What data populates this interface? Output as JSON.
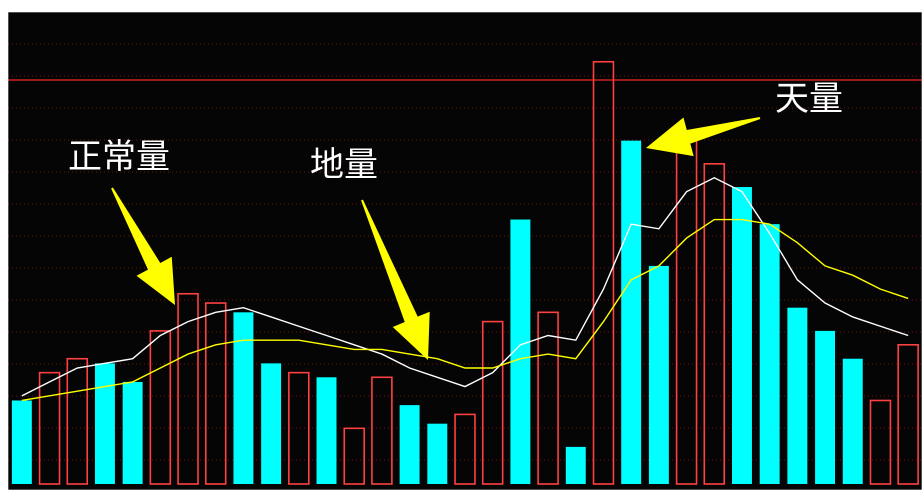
{
  "chart_data": {
    "type": "bar",
    "x": [
      1,
      2,
      3,
      4,
      5,
      6,
      7,
      8,
      9,
      10,
      11,
      12,
      13,
      14,
      15,
      16,
      17,
      18,
      19,
      20,
      21,
      22,
      23,
      24,
      25,
      26,
      27,
      28,
      29,
      30,
      31,
      32,
      33
    ],
    "values": [
      18,
      24,
      27,
      26,
      22,
      33,
      41,
      39,
      37,
      26,
      24,
      23,
      12,
      23,
      17,
      13,
      15,
      35,
      57,
      37,
      8,
      91,
      74,
      47,
      76,
      69,
      64,
      56,
      38,
      33,
      27,
      18,
      30
    ],
    "bar_direction": [
      "down",
      "up",
      "up",
      "down",
      "down",
      "up",
      "up",
      "up",
      "down",
      "down",
      "up",
      "down",
      "up",
      "up",
      "down",
      "down",
      "up",
      "up",
      "down",
      "up",
      "down",
      "up",
      "down",
      "down",
      "up",
      "up",
      "down",
      "down",
      "down",
      "down",
      "down",
      "up",
      "up"
    ],
    "series": [
      {
        "name": "",
        "values": [
          19,
          22,
          25,
          26,
          27,
          32,
          35,
          37,
          38,
          36,
          34,
          32,
          30,
          28,
          25,
          23,
          21,
          24,
          30,
          32,
          31,
          42,
          56,
          55,
          63,
          66,
          63,
          54,
          44,
          39,
          36,
          34,
          32
        ]
      },
      {
        "name": "",
        "values": [
          18,
          19,
          20,
          21,
          22,
          25,
          28,
          30,
          31,
          31,
          31,
          30,
          29,
          29,
          28,
          27,
          25,
          25,
          27,
          28,
          27,
          35,
          44,
          47,
          53,
          57,
          57,
          56,
          52,
          47,
          45,
          42,
          40
        ]
      }
    ],
    "ylim": [
      0,
      100
    ],
    "grid": true,
    "colors": {
      "background": "#050505",
      "frame": "#ffffff",
      "up_bar_outline": "#ff4040",
      "down_bar_fill": "#00ffff",
      "line_1": "#ffffff",
      "line_2": "#ffff00",
      "grid": "#7a1010",
      "reference_line": "#d42020",
      "arrow": "#ffff00",
      "annotation_text": "#ffffff"
    },
    "annotations": [
      {
        "text": "正常量",
        "points_to_bar": 6
      },
      {
        "text": "地量",
        "points_to_bar": 16
      },
      {
        "text": "天量",
        "points_to_bar": 23
      }
    ]
  }
}
